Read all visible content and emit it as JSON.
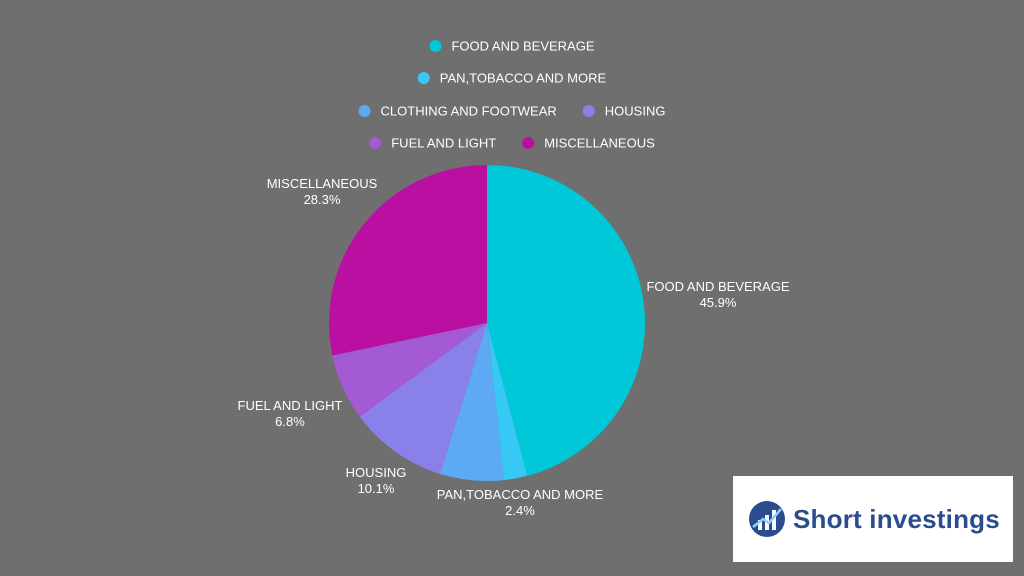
{
  "chart_data": {
    "type": "pie",
    "categories": [
      "FOOD AND BEVERAGE",
      "PAN,TOBACCO AND MORE",
      "CLOTHING AND FOOTWEAR",
      "HOUSING",
      "FUEL AND LIGHT",
      "MISCELLANEOUS"
    ],
    "values": [
      45.9,
      2.4,
      6.5,
      10.1,
      6.8,
      28.3
    ],
    "value_labels": [
      "45.9%",
      "2.4%",
      "",
      "10.1%",
      "6.8%",
      "28.3%"
    ],
    "colors": [
      "#00c8d8",
      "#38c8f4",
      "#5ea9f4",
      "#8a80ea",
      "#a45ad2",
      "#ba10a2"
    ],
    "slice_labels_shown": [
      true,
      true,
      false,
      true,
      true,
      true
    ],
    "legend_position": "top"
  },
  "logo": {
    "text": "Short investings",
    "icon": "chart-growth-icon"
  }
}
